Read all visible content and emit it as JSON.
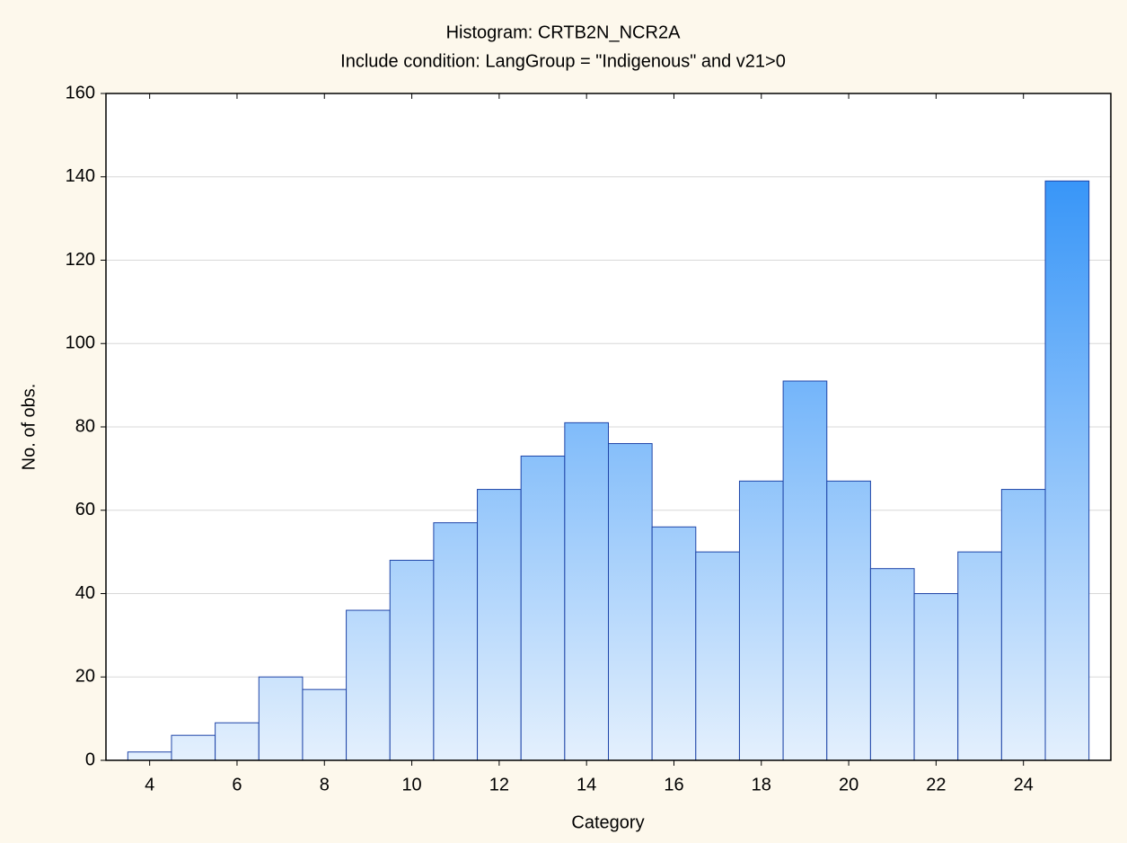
{
  "chart_data": {
    "type": "histogram",
    "title": "Histogram: CRTB2N_NCR2A",
    "subtitle": "Include condition: LangGroup = \"Indigenous\" and v21>0",
    "x_label": "Category",
    "y_label": "No. of obs.",
    "bins": [
      3.5,
      4.5,
      5.5,
      6.5,
      7.5,
      8.5,
      9.5,
      10.5,
      11.5,
      12.5,
      13.5,
      14.5,
      15.5,
      16.5,
      17.5,
      18.5,
      19.5,
      20.5,
      21.5,
      22.5,
      23.5,
      24.5,
      25.5
    ],
    "values": [
      2,
      6,
      9,
      20,
      17,
      36,
      48,
      57,
      65,
      73,
      81,
      76,
      56,
      50,
      67,
      91,
      67,
      46,
      40,
      50,
      65,
      139
    ],
    "xlim": [
      3,
      26
    ],
    "xticks": [
      4,
      6,
      8,
      10,
      12,
      14,
      16,
      18,
      20,
      22,
      24
    ],
    "ylim": [
      0,
      160
    ],
    "yticks": [
      0,
      20,
      40,
      60,
      80,
      100,
      120,
      140,
      160
    ],
    "grid": true,
    "color": [
      "#e4f0fd",
      "#1e88f7"
    ],
    "edge_color": "#1f45a8"
  }
}
